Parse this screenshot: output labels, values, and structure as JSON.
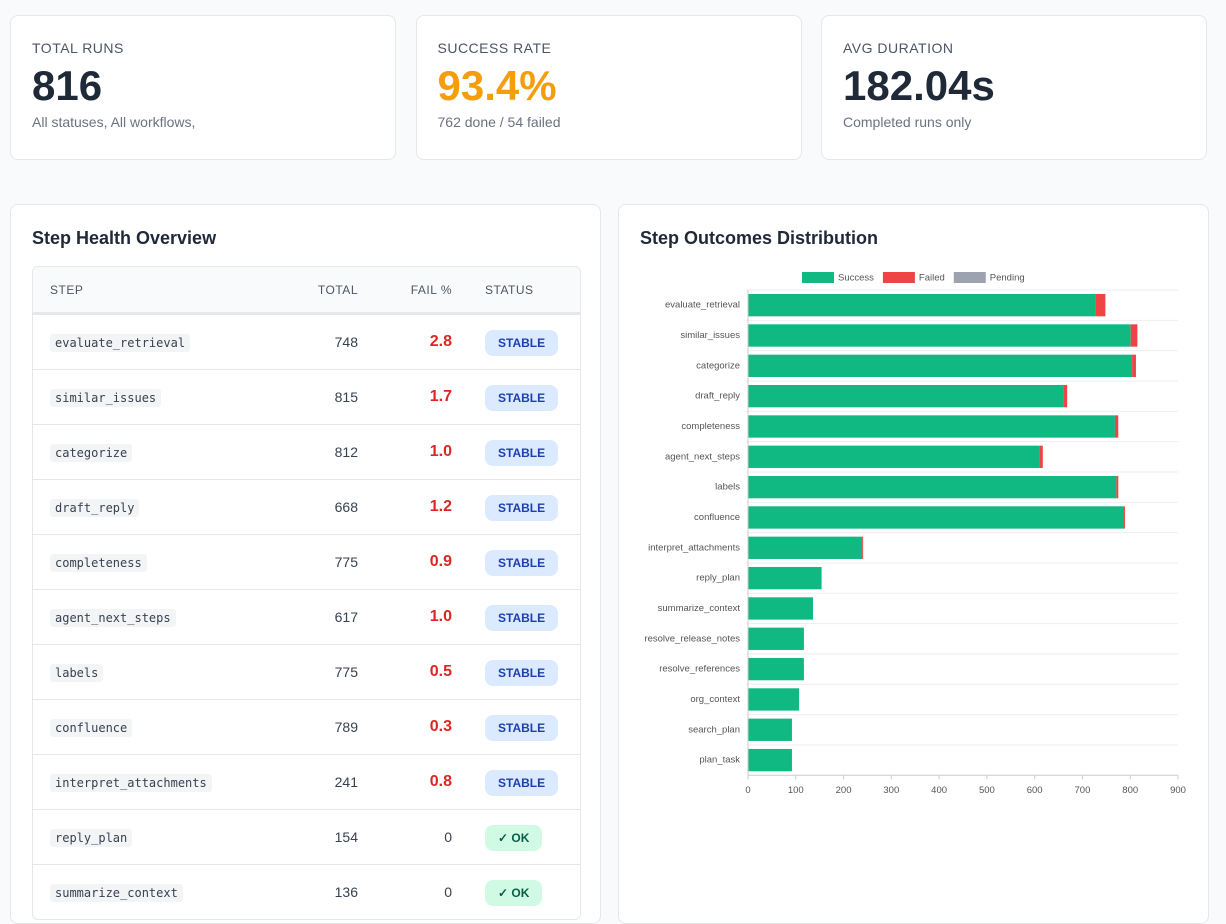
{
  "cards": [
    {
      "title": "TOTAL RUNS",
      "value": "816",
      "subtitle": "All statuses, All workflows,",
      "color": "#1f2937"
    },
    {
      "title": "SUCCESS RATE",
      "value": "93.4%",
      "subtitle": "762 done / 54 failed",
      "color": "#f59e0b"
    },
    {
      "title": "AVG DURATION",
      "value": "182.04s",
      "subtitle": "Completed runs only",
      "color": "#1f2937"
    }
  ],
  "table": {
    "title": "Step Health Overview",
    "columns": [
      "STEP",
      "TOTAL",
      "FAIL %",
      "STATUS"
    ],
    "rows": [
      [
        "evaluate_retrieval",
        "748",
        "2.8",
        "STABLE"
      ],
      [
        "similar_issues",
        "815",
        "1.7",
        "STABLE"
      ],
      [
        "categorize",
        "812",
        "1.0",
        "STABLE"
      ],
      [
        "draft_reply",
        "668",
        "1.2",
        "STABLE"
      ],
      [
        "completeness",
        "775",
        "0.9",
        "STABLE"
      ],
      [
        "agent_next_steps",
        "617",
        "1.0",
        "STABLE"
      ],
      [
        "labels",
        "775",
        "0.5",
        "STABLE"
      ],
      [
        "confluence",
        "789",
        "0.3",
        "STABLE"
      ],
      [
        "interpret_attachments",
        "241",
        "0.8",
        "STABLE"
      ],
      [
        "reply_plan",
        "154",
        "0",
        "✓ OK"
      ],
      [
        "summarize_context",
        "136",
        "0",
        "✓ OK"
      ]
    ]
  },
  "chart_data": {
    "type": "stacked-barh",
    "title": "Step Outcomes Distribution",
    "categories": [
      "evaluate_retrieval",
      "similar_issues",
      "categorize",
      "draft_reply",
      "completeness",
      "agent_next_steps",
      "labels",
      "confluence",
      "interpret_attachments",
      "reply_plan",
      "summarize_context",
      "resolve_release_notes",
      "resolve_references",
      "org_context",
      "search_plan",
      "plan_task"
    ],
    "series": [
      {
        "name": "Success",
        "color": "#10b981",
        "values": [
          727,
          801,
          804,
          660,
          768,
          611,
          771,
          787,
          239,
          154,
          136,
          117,
          117,
          107,
          92,
          92
        ]
      },
      {
        "name": "Failed",
        "color": "#ef4444",
        "values": [
          21,
          14,
          8,
          8,
          7,
          6,
          4,
          2,
          2,
          0,
          0,
          0,
          0,
          0,
          0,
          0
        ]
      },
      {
        "name": "Pending",
        "color": "#9ca3af",
        "values": [
          0,
          0,
          0,
          0,
          0,
          0,
          0,
          0,
          0,
          0,
          0,
          0,
          0,
          0,
          0,
          0
        ]
      }
    ],
    "xlim": [
      0,
      900
    ],
    "xticks": [
      0,
      100,
      200,
      300,
      400,
      500,
      600,
      700,
      800,
      900
    ],
    "legend": "top"
  }
}
